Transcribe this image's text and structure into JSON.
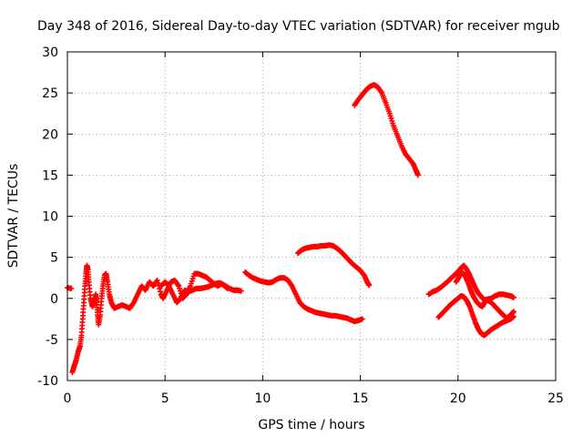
{
  "chart_data": {
    "type": "scatter",
    "title": "Day 348 of 2016, Sidereal Day-to-day VTEC variation (SDTVAR) for receiver mgub",
    "xlabel": "GPS time / hours",
    "ylabel": "SDTVAR / TECUs",
    "xlim": [
      0,
      25
    ],
    "ylim": [
      -10,
      30
    ],
    "xticks": [
      0,
      5,
      10,
      15,
      20,
      25
    ],
    "yticks": [
      -10,
      -5,
      0,
      5,
      10,
      15,
      20,
      25,
      30
    ],
    "grid": true,
    "marker": "plus",
    "color": "#ff0000",
    "segments": [
      [
        [
          0.0,
          1.3
        ],
        [
          0.2,
          1.2
        ]
      ],
      [
        [
          0.25,
          -9.0
        ],
        [
          0.35,
          -8.2
        ],
        [
          0.45,
          -7.5
        ],
        [
          0.55,
          -6.5
        ],
        [
          0.65,
          -5.8
        ],
        [
          0.72,
          -4.5
        ],
        [
          0.78,
          -2.5
        ],
        [
          0.84,
          -0.5
        ],
        [
          0.9,
          1.5
        ],
        [
          0.95,
          3.0
        ],
        [
          1.0,
          4.0
        ],
        [
          1.05,
          3.5
        ],
        [
          1.1,
          2.0
        ],
        [
          1.18,
          0.0
        ],
        [
          1.28,
          -1.0
        ],
        [
          1.38,
          -0.5
        ],
        [
          1.45,
          0.5
        ],
        [
          1.5,
          -0.5
        ],
        [
          1.55,
          -2.0
        ],
        [
          1.6,
          -3.2
        ],
        [
          1.68,
          -2.0
        ],
        [
          1.75,
          0.0
        ],
        [
          1.82,
          1.5
        ],
        [
          1.9,
          2.8
        ],
        [
          1.98,
          3.0
        ],
        [
          2.05,
          2.0
        ],
        [
          2.15,
          0.5
        ],
        [
          2.25,
          -0.5
        ],
        [
          2.4,
          -1.2
        ],
        [
          2.6,
          -1.0
        ],
        [
          2.8,
          -0.8
        ],
        [
          3.0,
          -1.0
        ],
        [
          3.2,
          -1.2
        ],
        [
          3.4,
          -0.5
        ],
        [
          3.6,
          0.5
        ],
        [
          3.8,
          1.5
        ],
        [
          4.0,
          1.0
        ],
        [
          4.2,
          2.0
        ],
        [
          4.4,
          1.5
        ],
        [
          4.6,
          2.2
        ],
        [
          4.8,
          0.5
        ],
        [
          4.9,
          0.0
        ],
        [
          5.1,
          1.0
        ],
        [
          5.3,
          2.0
        ],
        [
          5.5,
          2.2
        ],
        [
          5.7,
          1.5
        ],
        [
          5.9,
          0.0
        ],
        [
          6.1,
          0.5
        ],
        [
          6.3,
          1.5
        ],
        [
          6.5,
          3.0
        ],
        [
          6.7,
          3.0
        ],
        [
          6.9,
          2.8
        ],
        [
          7.1,
          2.6
        ],
        [
          7.3,
          2.2
        ],
        [
          7.5,
          1.8
        ],
        [
          7.7,
          1.5
        ],
        [
          7.9,
          1.8
        ],
        [
          8.1,
          1.5
        ],
        [
          8.3,
          1.2
        ],
        [
          8.5,
          1.0
        ],
        [
          8.7,
          1.0
        ],
        [
          8.9,
          0.9
        ]
      ],
      [
        [
          4.8,
          1.5
        ],
        [
          5.0,
          2.0
        ],
        [
          5.2,
          1.5
        ],
        [
          5.4,
          0.5
        ],
        [
          5.6,
          -0.5
        ],
        [
          5.8,
          0.0
        ],
        [
          6.0,
          1.0
        ],
        [
          6.2,
          0.8
        ],
        [
          6.4,
          1.0
        ],
        [
          6.6,
          1.2
        ],
        [
          6.8,
          1.2
        ],
        [
          7.0,
          1.3
        ],
        [
          7.2,
          1.4
        ],
        [
          7.4,
          1.6
        ],
        [
          7.6,
          1.8
        ],
        [
          7.8,
          1.9
        ],
        [
          8.0,
          1.6
        ],
        [
          8.2,
          1.2
        ]
      ],
      [
        [
          9.1,
          3.2
        ],
        [
          9.3,
          2.8
        ],
        [
          9.5,
          2.5
        ],
        [
          9.7,
          2.3
        ],
        [
          9.9,
          2.1
        ],
        [
          10.1,
          2.0
        ],
        [
          10.3,
          1.9
        ],
        [
          10.5,
          2.0
        ],
        [
          10.7,
          2.3
        ],
        [
          10.9,
          2.5
        ],
        [
          11.1,
          2.5
        ],
        [
          11.3,
          2.2
        ],
        [
          11.5,
          1.5
        ],
        [
          11.7,
          0.5
        ],
        [
          11.9,
          -0.5
        ],
        [
          12.1,
          -1.0
        ],
        [
          12.3,
          -1.3
        ],
        [
          12.5,
          -1.5
        ],
        [
          12.7,
          -1.7
        ],
        [
          12.9,
          -1.8
        ],
        [
          13.1,
          -1.9
        ],
        [
          13.3,
          -2.0
        ],
        [
          13.5,
          -2.1
        ],
        [
          13.7,
          -2.1
        ],
        [
          13.9,
          -2.2
        ],
        [
          14.1,
          -2.3
        ],
        [
          14.3,
          -2.4
        ],
        [
          14.5,
          -2.6
        ],
        [
          14.7,
          -2.8
        ],
        [
          14.9,
          -2.7
        ],
        [
          15.1,
          -2.5
        ]
      ],
      [
        [
          11.8,
          5.5
        ],
        [
          12.0,
          5.9
        ],
        [
          12.2,
          6.1
        ],
        [
          12.4,
          6.2
        ],
        [
          12.6,
          6.3
        ],
        [
          12.8,
          6.3
        ],
        [
          13.0,
          6.4
        ],
        [
          13.2,
          6.4
        ],
        [
          13.4,
          6.5
        ],
        [
          13.6,
          6.4
        ],
        [
          13.8,
          6.1
        ],
        [
          14.0,
          5.7
        ],
        [
          14.2,
          5.2
        ],
        [
          14.4,
          4.7
        ],
        [
          14.6,
          4.2
        ],
        [
          14.8,
          3.8
        ],
        [
          15.0,
          3.4
        ],
        [
          15.2,
          2.8
        ],
        [
          15.35,
          2.0
        ],
        [
          15.45,
          1.6
        ]
      ],
      [
        [
          14.7,
          23.5
        ],
        [
          14.9,
          24.2
        ],
        [
          15.1,
          24.8
        ],
        [
          15.3,
          25.4
        ],
        [
          15.5,
          25.8
        ],
        [
          15.7,
          26.0
        ],
        [
          15.9,
          25.7
        ],
        [
          16.1,
          25.0
        ],
        [
          16.3,
          23.8
        ],
        [
          16.5,
          22.5
        ],
        [
          16.7,
          21.0
        ],
        [
          16.9,
          19.8
        ],
        [
          17.1,
          18.6
        ],
        [
          17.3,
          17.6
        ],
        [
          17.5,
          17.0
        ],
        [
          17.7,
          16.4
        ],
        [
          17.85,
          15.6
        ],
        [
          17.95,
          15.0
        ]
      ],
      [
        [
          18.5,
          0.5
        ],
        [
          18.7,
          0.8
        ],
        [
          18.9,
          1.0
        ],
        [
          19.1,
          1.3
        ],
        [
          19.3,
          1.7
        ],
        [
          19.5,
          2.1
        ],
        [
          19.7,
          2.6
        ],
        [
          19.9,
          3.0
        ],
        [
          20.05,
          3.4
        ],
        [
          20.2,
          3.8
        ],
        [
          20.3,
          4.0
        ],
        [
          20.45,
          3.5
        ],
        [
          20.6,
          2.8
        ],
        [
          20.75,
          2.0
        ],
        [
          20.9,
          1.2
        ],
        [
          21.05,
          0.6
        ],
        [
          21.2,
          0.2
        ],
        [
          21.35,
          -0.2
        ],
        [
          21.5,
          -0.1
        ],
        [
          21.7,
          0.0
        ],
        [
          21.9,
          0.3
        ],
        [
          22.1,
          0.5
        ],
        [
          22.3,
          0.5
        ],
        [
          22.5,
          0.4
        ],
        [
          22.7,
          0.3
        ],
        [
          22.85,
          0.1
        ]
      ],
      [
        [
          19.0,
          -2.3
        ],
        [
          19.2,
          -1.8
        ],
        [
          19.4,
          -1.3
        ],
        [
          19.6,
          -0.8
        ],
        [
          19.8,
          -0.4
        ],
        [
          20.0,
          0.0
        ],
        [
          20.15,
          0.3
        ],
        [
          20.3,
          0.2
        ],
        [
          20.45,
          -0.3
        ],
        [
          20.6,
          -1.0
        ],
        [
          20.75,
          -2.0
        ],
        [
          20.9,
          -3.0
        ],
        [
          21.05,
          -3.8
        ],
        [
          21.2,
          -4.3
        ],
        [
          21.35,
          -4.5
        ],
        [
          21.5,
          -4.2
        ],
        [
          21.7,
          -3.8
        ],
        [
          21.9,
          -3.5
        ],
        [
          22.1,
          -3.2
        ],
        [
          22.3,
          -2.9
        ],
        [
          22.5,
          -2.7
        ],
        [
          22.7,
          -2.5
        ],
        [
          22.85,
          -2.2
        ]
      ],
      [
        [
          19.9,
          2.0
        ],
        [
          20.05,
          2.6
        ],
        [
          20.2,
          3.2
        ],
        [
          20.35,
          2.8
        ],
        [
          20.5,
          2.0
        ],
        [
          20.65,
          1.0
        ],
        [
          20.8,
          0.2
        ],
        [
          20.95,
          -0.4
        ],
        [
          21.1,
          -0.8
        ],
        [
          21.25,
          -1.0
        ],
        [
          21.35,
          -0.5
        ],
        [
          21.5,
          -0.2
        ],
        [
          21.7,
          -0.5
        ],
        [
          21.9,
          -1.0
        ],
        [
          22.1,
          -1.5
        ],
        [
          22.3,
          -2.0
        ],
        [
          22.5,
          -2.4
        ],
        [
          22.7,
          -2.0
        ],
        [
          22.85,
          -1.6
        ]
      ]
    ]
  }
}
